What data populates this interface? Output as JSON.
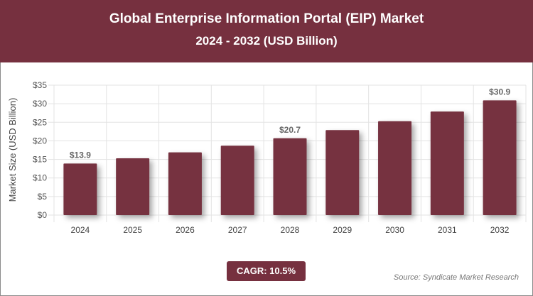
{
  "header": {
    "title": "Global Enterprise Information Portal (EIP) Market",
    "subtitle": "2024 - 2032 (USD Billion)"
  },
  "footer": {
    "cagr": "CAGR: 10.5%",
    "source": "Source: Syndicate Market Research"
  },
  "colors": {
    "bar": "#76303f",
    "header": "#76303f"
  },
  "chart_data": {
    "type": "bar",
    "title": "Global Enterprise Information Portal (EIP) Market",
    "subtitle": "2024 - 2032 (USD Billion)",
    "ylabel": "Market Size (USD Billion)",
    "xlabel": "",
    "categories": [
      "2024",
      "2025",
      "2026",
      "2027",
      "2028",
      "2029",
      "2030",
      "2031",
      "2032"
    ],
    "values": [
      13.9,
      15.3,
      16.9,
      18.7,
      20.7,
      22.9,
      25.3,
      27.9,
      30.9
    ],
    "data_labels": {
      "0": "$13.9",
      "4": "$20.7",
      "8": "$30.9"
    },
    "ylim": [
      0,
      35
    ],
    "yticks": [
      "$0",
      "$5",
      "$10",
      "$15",
      "$20",
      "$25",
      "$30",
      "$35"
    ],
    "grid": true
  }
}
